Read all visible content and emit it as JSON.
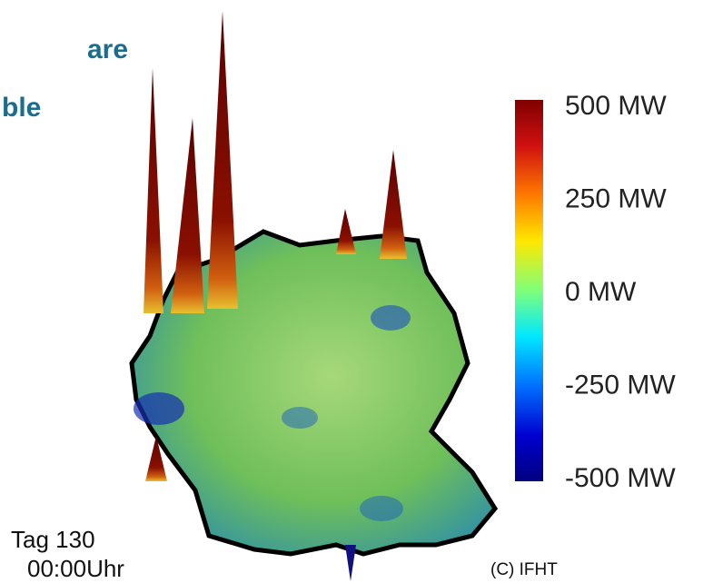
{
  "header": {
    "line1": "are",
    "line2": "ble"
  },
  "colorbar": {
    "lim": [
      -500,
      500
    ],
    "ticks": [
      {
        "value": 500,
        "label": "500 MW"
      },
      {
        "value": 250,
        "label": "250 MW"
      },
      {
        "value": 0,
        "label": "0 MW"
      },
      {
        "value": -250,
        "label": "-250 MW"
      },
      {
        "value": -500,
        "label": "-500 MW"
      }
    ]
  },
  "timestamp": {
    "day": "Tag 130",
    "time": "00:00Uhr"
  },
  "copyright": "(C) IFHT"
}
